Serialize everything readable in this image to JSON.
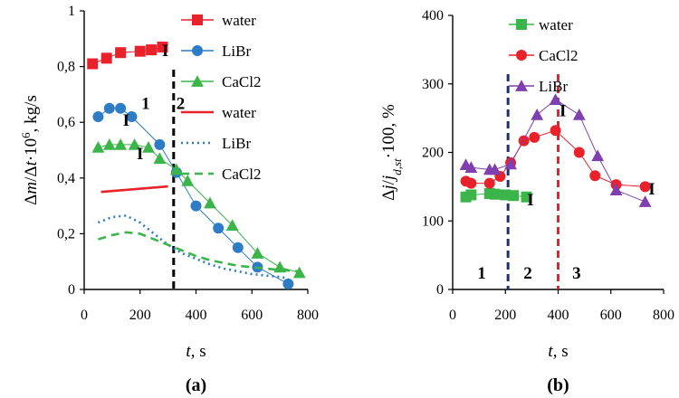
{
  "chart_data": [
    {
      "type": "line",
      "panel_label": "(a)",
      "xlabel_var": "t",
      "xlabel_unit": ", s",
      "ylabel_parts": [
        "Δ",
        "m",
        "/Δ",
        "t",
        "·10",
        "6",
        ", kg/s"
      ],
      "xlim": [
        0,
        800
      ],
      "ylim": [
        0,
        1
      ],
      "x_ticks": [
        "0",
        "200",
        "400",
        "600",
        "800"
      ],
      "y_ticks": [
        "0",
        "0,2",
        "0,4",
        "0,6",
        "0,8",
        "1"
      ],
      "x_tick_values": [
        0,
        200,
        400,
        600,
        800
      ],
      "y_tick_values": [
        0,
        0.2,
        0.4,
        0.6,
        0.8,
        1
      ],
      "legend_position": "top-right",
      "series": [
        {
          "name": "water",
          "kind": "marker",
          "marker": "square",
          "color": "#e8212b",
          "x": [
            30,
            80,
            130,
            200,
            240,
            280
          ],
          "y": [
            0.81,
            0.83,
            0.85,
            0.855,
            0.86,
            0.87
          ]
        },
        {
          "name": "LiBr",
          "kind": "marker",
          "marker": "circle",
          "color": "#2e7cc6",
          "x": [
            50,
            90,
            130,
            170,
            270,
            330,
            400,
            480,
            550,
            620,
            730
          ],
          "y": [
            0.62,
            0.65,
            0.65,
            0.62,
            0.52,
            0.42,
            0.3,
            0.22,
            0.15,
            0.08,
            0.02
          ]
        },
        {
          "name": "CaCl2",
          "kind": "marker",
          "marker": "triangle",
          "color": "#3bb54a",
          "x": [
            50,
            90,
            130,
            180,
            230,
            270,
            330,
            370,
            450,
            530,
            620,
            700,
            770
          ],
          "y": [
            0.51,
            0.52,
            0.52,
            0.52,
            0.51,
            0.47,
            0.43,
            0.39,
            0.31,
            0.23,
            0.13,
            0.08,
            0.06
          ]
        },
        {
          "name": "water",
          "kind": "line",
          "dash": "solid",
          "color": "#e8212b",
          "x": [
            60,
            300
          ],
          "y": [
            0.35,
            0.37
          ]
        },
        {
          "name": "LiBr",
          "kind": "line",
          "dash": "dotted",
          "color": "#2e7cc6",
          "x": [
            50,
            100,
            150,
            200,
            250,
            300,
            350,
            400,
            450,
            500,
            550,
            600,
            650,
            700,
            730
          ],
          "y": [
            0.24,
            0.26,
            0.265,
            0.24,
            0.2,
            0.16,
            0.13,
            0.11,
            0.09,
            0.075,
            0.065,
            0.055,
            0.05,
            0.045,
            0.04
          ]
        },
        {
          "name": "CaCl2",
          "kind": "line",
          "dash": "dashed",
          "color": "#3bb54a",
          "x": [
            50,
            100,
            150,
            200,
            250,
            300,
            350,
            400,
            450,
            500,
            550,
            600,
            650,
            700,
            770
          ],
          "y": [
            0.18,
            0.195,
            0.205,
            0.2,
            0.18,
            0.16,
            0.14,
            0.12,
            0.105,
            0.095,
            0.085,
            0.08,
            0.075,
            0.07,
            0.065
          ]
        }
      ],
      "vlines": [
        {
          "x": 320,
          "color": "#000000",
          "dash": "dashed"
        }
      ],
      "annotations": [
        {
          "text": "I",
          "x": 290,
          "y": 0.86
        },
        {
          "text": "I",
          "x": 150,
          "y": 0.61
        },
        {
          "text": "I",
          "x": 200,
          "y": 0.49
        },
        {
          "text": "1",
          "x": 220,
          "y": 0.67
        },
        {
          "text": "2",
          "x": 345,
          "y": 0.67
        }
      ]
    },
    {
      "type": "line",
      "panel_label": "(b)",
      "xlabel_var": "t",
      "xlabel_unit": ", s",
      "ylabel_parts": [
        "Δ",
        "j",
        "/",
        "j",
        "d,st",
        "·100, %"
      ],
      "xlim": [
        0,
        800
      ],
      "ylim": [
        0,
        400
      ],
      "x_ticks": [
        "0",
        "200",
        "400",
        "600",
        "800"
      ],
      "y_ticks": [
        "0",
        "100",
        "200",
        "300",
        "400"
      ],
      "x_tick_values": [
        0,
        200,
        400,
        600,
        800
      ],
      "y_tick_values": [
        0,
        100,
        200,
        300,
        400
      ],
      "legend_position": "top-right",
      "series": [
        {
          "name": "water",
          "kind": "marker",
          "marker": "square",
          "color": "#3bb54a",
          "x": [
            50,
            70,
            140,
            160,
            200,
            230,
            280
          ],
          "y": [
            135,
            138,
            140,
            139,
            138,
            137,
            135
          ]
        },
        {
          "name": "CaCl2",
          "kind": "marker",
          "marker": "circle",
          "color": "#e8212b",
          "x": [
            50,
            70,
            140,
            180,
            220,
            270,
            310,
            390,
            480,
            540,
            620,
            730
          ],
          "y": [
            158,
            155,
            155,
            165,
            185,
            217,
            222,
            232,
            200,
            166,
            153,
            150
          ]
        },
        {
          "name": "LiBr",
          "kind": "marker",
          "marker": "triangle",
          "color": "#7f3faf",
          "x": [
            50,
            70,
            140,
            160,
            220,
            320,
            390,
            480,
            550,
            620,
            730
          ],
          "y": [
            182,
            178,
            175,
            175,
            183,
            255,
            277,
            255,
            195,
            145,
            128
          ]
        }
      ],
      "vlines": [
        {
          "x": 210,
          "color": "#1f2f6f",
          "dash": "dashed"
        },
        {
          "x": 400,
          "color": "#e8212b",
          "dash": "dashed"
        }
      ],
      "annotations": [
        {
          "text": "I",
          "x": 295,
          "y": 132
        },
        {
          "text": "I",
          "x": 418,
          "y": 262
        },
        {
          "text": "I",
          "x": 755,
          "y": 148
        },
        {
          "text": "1",
          "x": 110,
          "y": 25
        },
        {
          "text": "2",
          "x": 285,
          "y": 25
        },
        {
          "text": "3",
          "x": 470,
          "y": 25
        }
      ]
    }
  ]
}
